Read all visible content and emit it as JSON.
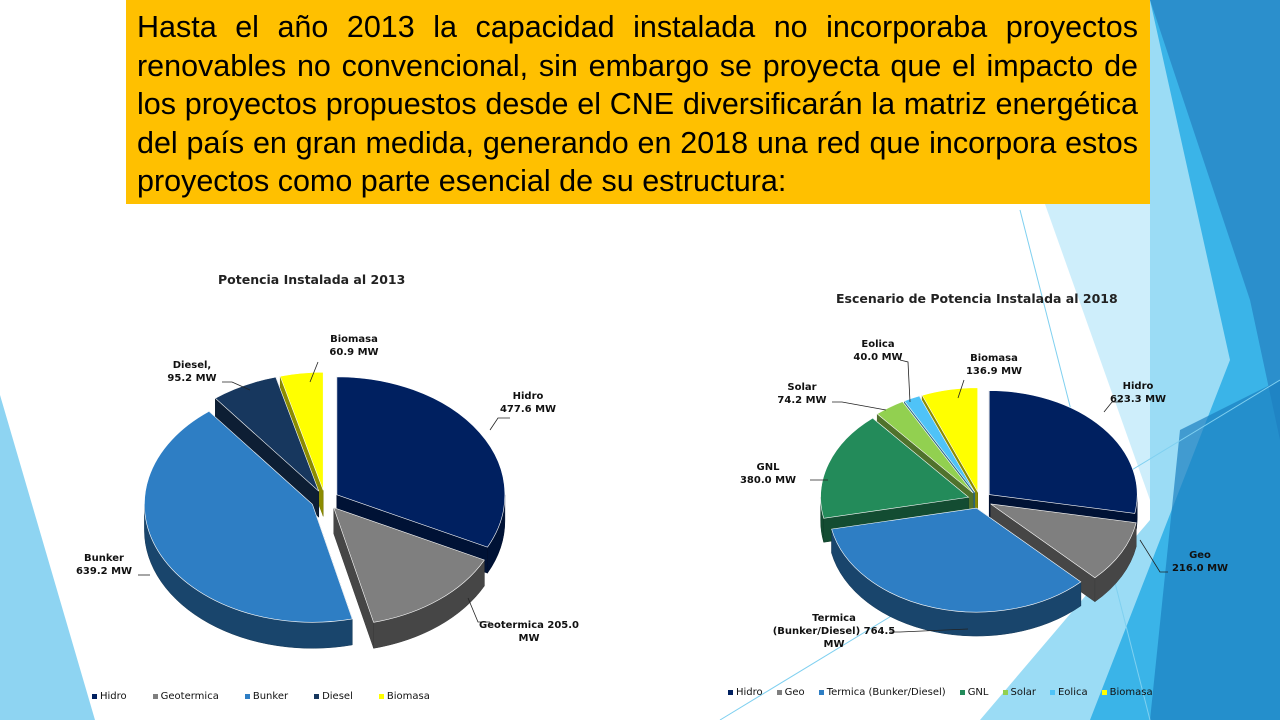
{
  "slide": {
    "headline": "Hasta el año 2013 la capacidad instalada no incorporaba proyectos renovables no convencional, sin embargo se proyecta que el impacto de los proyectos propuestos desde el CNE diversificarán la matriz energética del país en gran medida, generando en 2018 una red que incorpora estos proyectos como parte esencial de su estructura:",
    "headline_bg": "#FFC000"
  },
  "chart_data": [
    {
      "type": "pie",
      "title": "Potencia Instalada al 2013",
      "legend_position": "bottom",
      "slices": [
        {
          "name": "Hidro",
          "value": 477.6,
          "label_name": "Hidro",
          "label_value": "477.6 MW",
          "color": "#002060"
        },
        {
          "name": "Geotermica",
          "value": 205.0,
          "label_name": "Geotermica 205.0",
          "label_value": "MW",
          "color": "#7F7F7F"
        },
        {
          "name": "Bunker",
          "value": 639.2,
          "label_name": "Bunker",
          "label_value": "639.2 MW",
          "color": "#2E7EC4"
        },
        {
          "name": "Diesel",
          "value": 95.2,
          "label_name": "Diesel,",
          "label_value": "95.2 MW",
          "color": "#17375E"
        },
        {
          "name": "Biomasa",
          "value": 60.9,
          "label_name": "Biomasa",
          "label_value": "60.9 MW",
          "color": "#FFFF00"
        }
      ]
    },
    {
      "type": "pie",
      "title": "Escenario de Potencia Instalada al 2018",
      "legend_position": "bottom",
      "slices": [
        {
          "name": "Hidro",
          "value": 623.3,
          "label_name": "Hidro",
          "label_value": "623.3 MW",
          "color": "#002060"
        },
        {
          "name": "Geo",
          "value": 216.0,
          "label_name": "Geo",
          "label_value": "216.0 MW",
          "color": "#7F7F7F"
        },
        {
          "name": "Termica (Bunker/Diesel)",
          "value": 764.5,
          "label_name": "Termica",
          "label_value": "(Bunker/Diesel) 764.5",
          "label_extra": "MW",
          "color": "#2E7EC4"
        },
        {
          "name": "GNL",
          "value": 380.0,
          "label_name": "GNL",
          "label_value": "380.0 MW",
          "color": "#238B5A"
        },
        {
          "name": "Solar",
          "value": 74.2,
          "label_name": "Solar",
          "label_value": "74.2 MW",
          "color": "#92D050"
        },
        {
          "name": "Eolica",
          "value": 40.0,
          "label_name": "Eolica",
          "label_value": "40.0 MW",
          "color": "#4FC3F7"
        },
        {
          "name": "Biomasa",
          "value": 136.9,
          "label_name": "Biomasa",
          "label_value": "136.9 MW",
          "color": "#FFFF00"
        }
      ]
    }
  ]
}
